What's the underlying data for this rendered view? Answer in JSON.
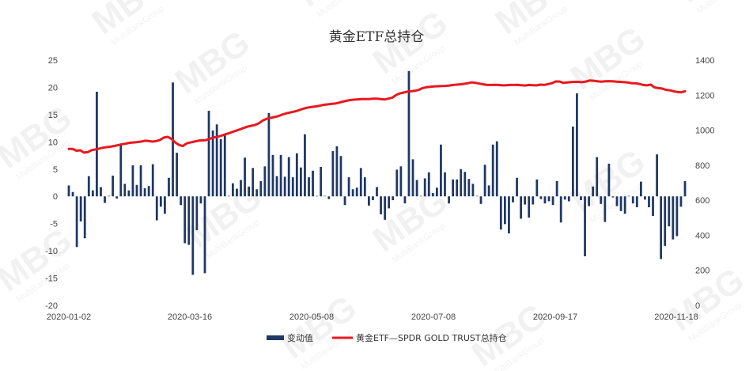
{
  "chart_data": {
    "type": "bar+line",
    "title": "黄金ETF总持仓",
    "x_tick_labels": [
      "2020-01-02",
      "2020-03-16",
      "2020-05-08",
      "2020-07-08",
      "2020-09-17",
      "2020-11-18"
    ],
    "left_axis": {
      "ylim": [
        -20,
        25
      ],
      "ticks": [
        -20,
        -15,
        -10,
        -5,
        0,
        5,
        10,
        15,
        20,
        25
      ]
    },
    "right_axis": {
      "ylim": [
        0,
        1400
      ],
      "ticks": [
        0,
        200,
        400,
        600,
        800,
        1000,
        1200,
        1400
      ]
    },
    "legend": {
      "placement": "bottom-center"
    },
    "series": [
      {
        "name": "变动值",
        "kind": "bar",
        "axis": "left",
        "color": "#1f3864",
        "values": [
          2,
          0.8,
          -9.3,
          -4.6,
          -7.7,
          3.7,
          1.1,
          19.2,
          1.7,
          -1.2,
          0,
          3.8,
          -0.4,
          9.4,
          2.3,
          1.1,
          5.7,
          2.1,
          5.7,
          1.5,
          1.9,
          5.9,
          -4.4,
          -1.9,
          -3.2,
          3.4,
          20.9,
          8,
          -1.6,
          -8.6,
          -8.9,
          -14.4,
          -6.2,
          -1.3,
          -14.1,
          15.7,
          12.1,
          13.2,
          10.5,
          11.2,
          0,
          2.4,
          1.4,
          3,
          7.1,
          1.8,
          5.2,
          1.3,
          2.8,
          5.5,
          15.3,
          7.6,
          3.7,
          7.6,
          3.6,
          7.2,
          3.5,
          7.9,
          5.3,
          11.4,
          3.5,
          4.7,
          0,
          5.4,
          0,
          -0.5,
          8.3,
          9.2,
          7.4,
          -1.6,
          3.5,
          1.3,
          1.6,
          5.2,
          3.5,
          -1.7,
          -0.7,
          1.7,
          -3.3,
          -4.3,
          -2.2,
          -0.7,
          4.9,
          5.5,
          -1.3,
          23,
          6.8,
          3,
          0,
          3.3,
          4.4,
          0.6,
          1.6,
          9.5,
          4.4,
          -1.3,
          3.1,
          3.1,
          5,
          4.5,
          3.2,
          2.3,
          0,
          -1.4,
          5.8,
          2,
          9.5,
          10.1,
          -6.1,
          -5.1,
          -6.8,
          -1.1,
          3.4,
          -4.1,
          -1.5,
          -3.9,
          -1.5,
          3.1,
          -0.5,
          -1.3,
          -0.9,
          -1.6,
          2.8,
          -4.8,
          -0.6,
          -0.9,
          12.8,
          18.9,
          -0.7,
          -11,
          -1.8,
          1.8,
          7.2,
          -1.4,
          -4.7,
          6,
          -0.2,
          -1.8,
          -2.7,
          -3.2,
          0,
          -1.3,
          -2,
          2.7,
          -0.6,
          -2,
          -3.6,
          7.7,
          -11.5,
          -9.1,
          -5.5,
          -7.9,
          -7.3,
          -1.9,
          2.8
        ]
      },
      {
        "name": "黄金ETF—SPDR GOLD TRUST总持仓",
        "kind": "line",
        "axis": "right",
        "color": "#e8191f",
        "values": [
          893,
          893,
          883,
          885,
          872,
          875,
          886,
          890,
          895,
          900,
          903,
          906,
          910,
          915,
          920,
          923,
          928,
          930,
          932,
          935,
          940,
          938,
          935,
          938,
          945,
          958,
          962,
          950,
          930,
          915,
          910,
          925,
          930,
          935,
          940,
          942,
          943,
          950,
          958,
          962,
          968,
          975,
          982,
          990,
          997,
          1005,
          1013,
          1020,
          1025,
          1030,
          1040,
          1055,
          1065,
          1070,
          1075,
          1080,
          1088,
          1095,
          1100,
          1105,
          1110,
          1118,
          1125,
          1130,
          1133,
          1136,
          1140,
          1145,
          1147,
          1150,
          1152,
          1157,
          1163,
          1168,
          1172,
          1174,
          1176,
          1178,
          1178,
          1178,
          1180,
          1180,
          1178,
          1175,
          1180,
          1185,
          1200,
          1210,
          1215,
          1220,
          1222,
          1225,
          1230,
          1240,
          1245,
          1248,
          1250,
          1251,
          1252,
          1253,
          1255,
          1258,
          1260,
          1262,
          1265,
          1268,
          1273,
          1270,
          1266,
          1262,
          1258,
          1258,
          1259,
          1258,
          1256,
          1257,
          1258,
          1258,
          1259,
          1257,
          1255,
          1258,
          1257,
          1256,
          1260,
          1258,
          1263,
          1268,
          1278,
          1278,
          1270,
          1272,
          1275,
          1276,
          1276,
          1274,
          1278,
          1284,
          1282,
          1279,
          1277,
          1279,
          1280,
          1279,
          1277,
          1276,
          1274,
          1272,
          1268,
          1268,
          1264,
          1258,
          1256,
          1260,
          1244,
          1240,
          1238,
          1230,
          1228,
          1222,
          1218,
          1216,
          1222
        ]
      }
    ]
  },
  "watermark": {
    "logo": "MBG",
    "sub": "MultiBankGroup"
  }
}
